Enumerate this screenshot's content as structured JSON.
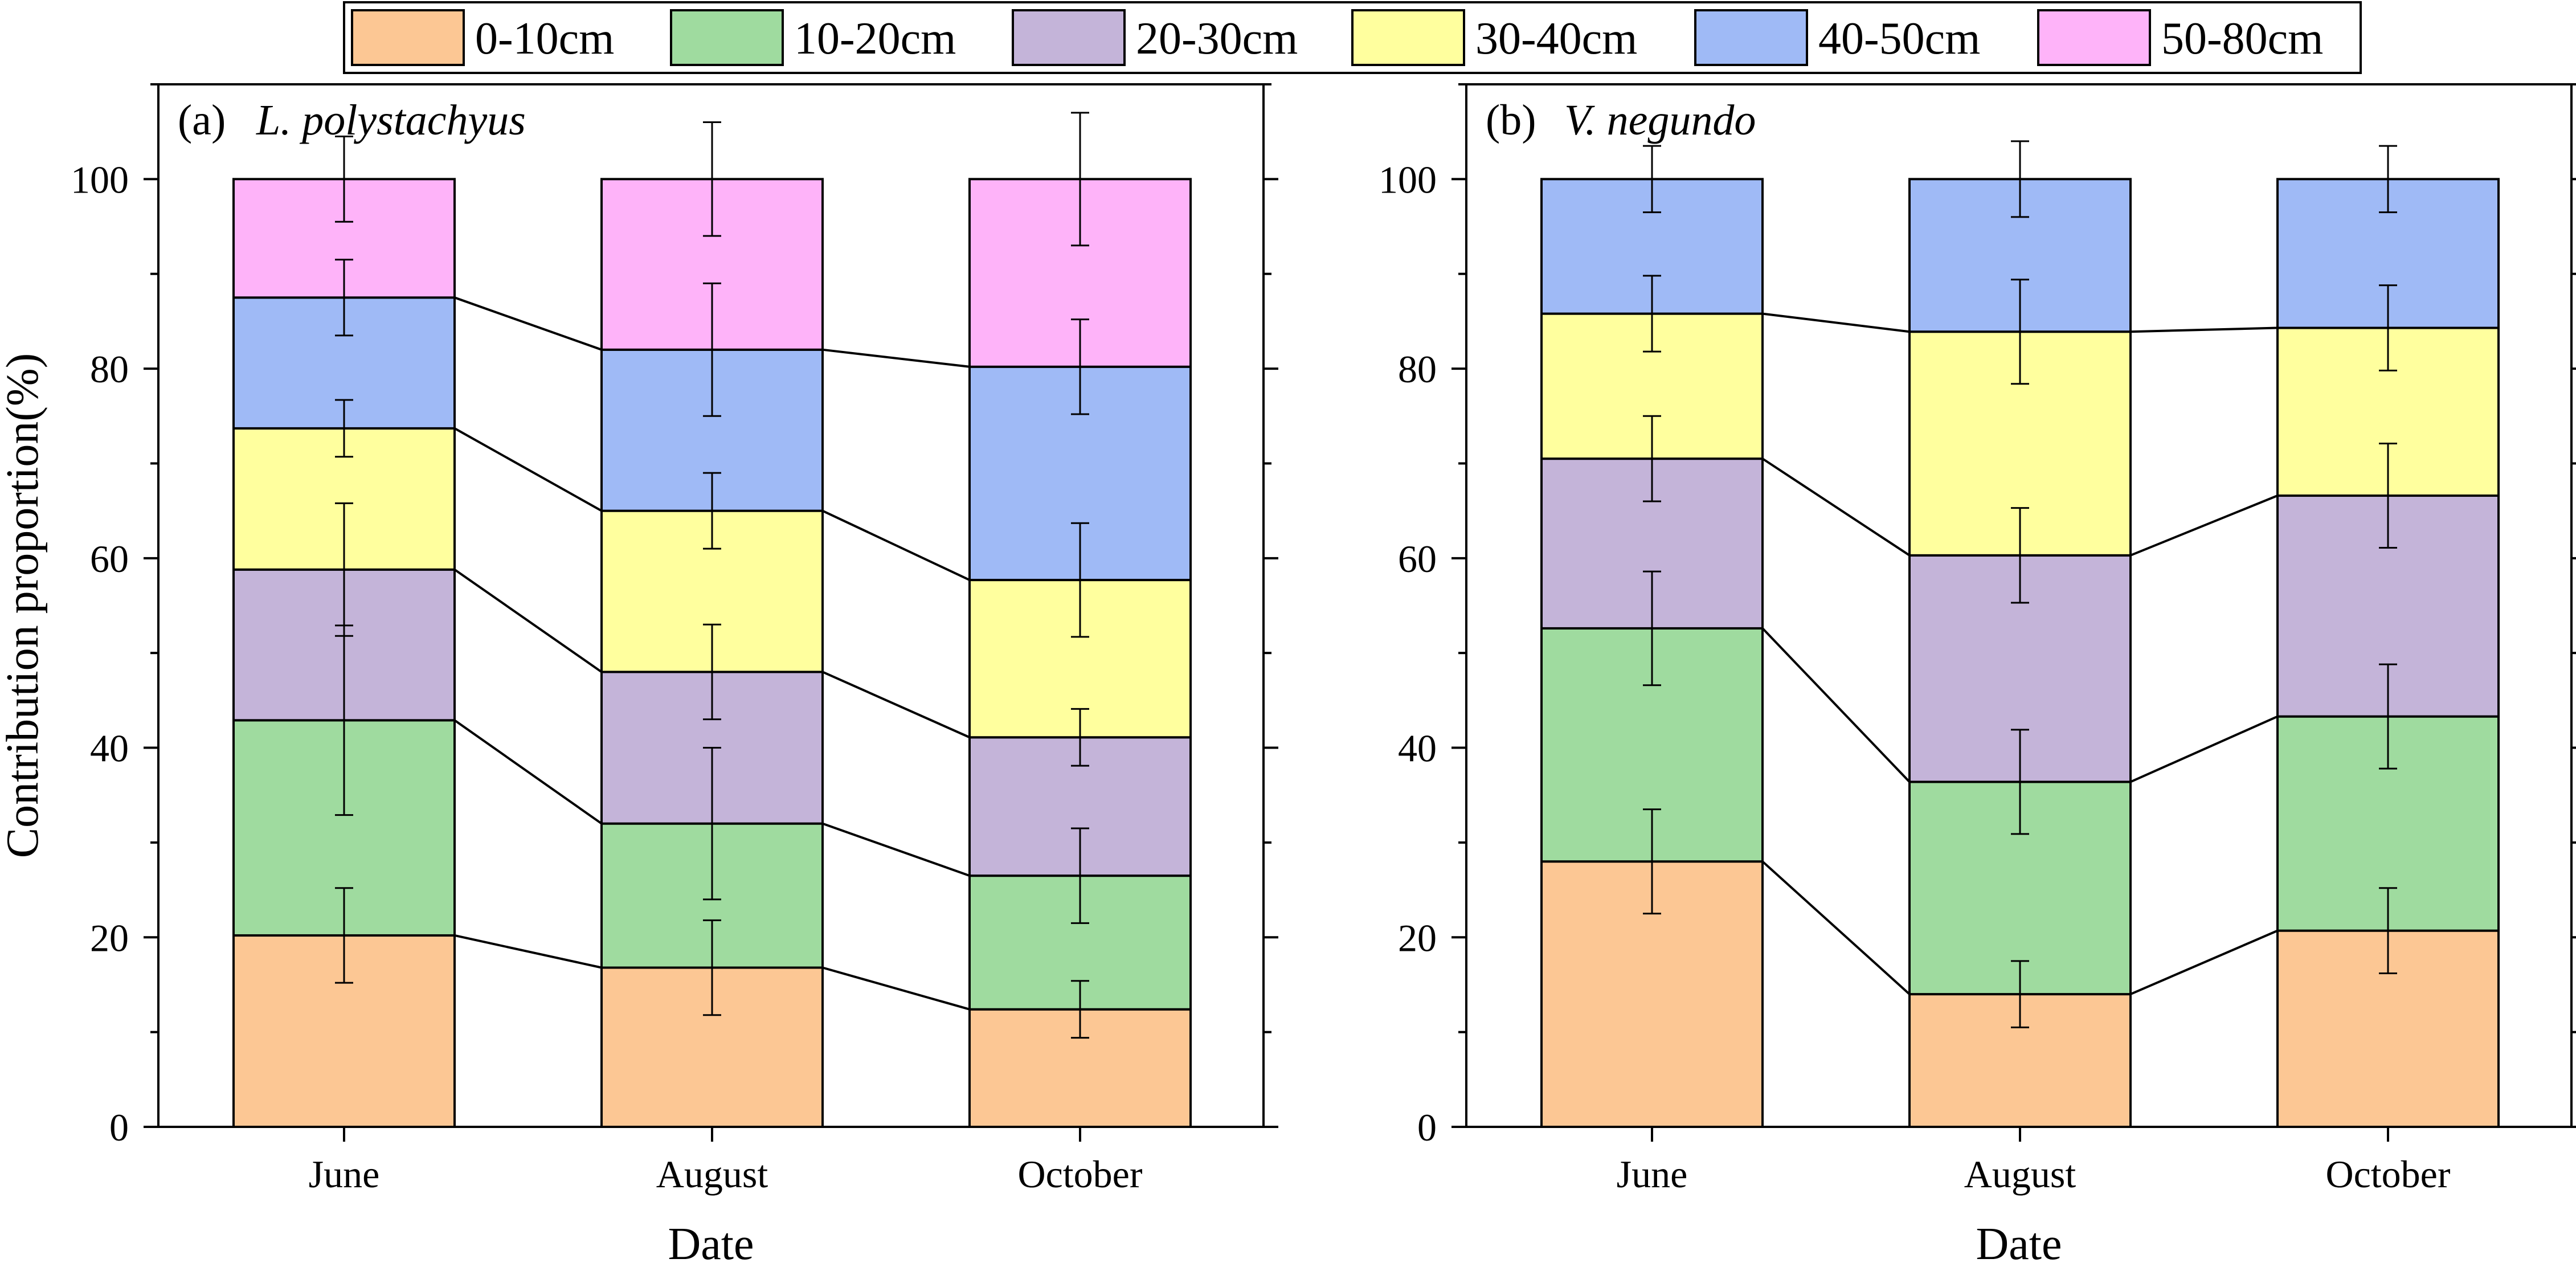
{
  "colors": {
    "0-10cm": "#fcc794",
    "10-20cm": "#9fdb9f",
    "20-30cm": "#c4b4d9",
    "30-40cm": "#ffff9e",
    "40-50cm": "#9fbaf6",
    "50-80cm": "#feb3f9"
  },
  "legend": {
    "entries": [
      "0-10cm",
      "10-20cm",
      "20-30cm",
      "30-40cm",
      "40-50cm",
      "50-80cm"
    ],
    "placement": "top-center"
  },
  "chart_data": [
    {
      "type": "bar",
      "stacked": true,
      "panel_label": "(a)",
      "title": "L. polystachyus",
      "xlabel": "Date",
      "ylabel": "Contribution proportion(%)",
      "ylim": [
        0,
        110
      ],
      "yticks": [
        0,
        20,
        40,
        60,
        80,
        100
      ],
      "categories": [
        "June",
        "August",
        "October"
      ],
      "series": [
        {
          "name": "0-10cm",
          "values": [
            20.2,
            16.8,
            12.4
          ],
          "errors": [
            5.0,
            5.0,
            3.0
          ]
        },
        {
          "name": "10-20cm",
          "values": [
            22.7,
            15.2,
            14.1
          ],
          "errors": [
            10.0,
            8.0,
            5.0
          ]
        },
        {
          "name": "20-30cm",
          "values": [
            15.9,
            16.0,
            14.6
          ],
          "errors": [
            7.0,
            5.0,
            3.0
          ]
        },
        {
          "name": "30-40cm",
          "values": [
            14.9,
            17.0,
            16.6
          ],
          "errors": [
            3.0,
            4.0,
            6.0
          ]
        },
        {
          "name": "40-50cm",
          "values": [
            13.8,
            17.0,
            22.5
          ],
          "errors": [
            4.0,
            7.0,
            5.0
          ]
        },
        {
          "name": "50-80cm",
          "values": [
            12.5,
            18.0,
            19.8
          ],
          "errors": [
            4.5,
            6.0,
            7.0
          ]
        }
      ]
    },
    {
      "type": "bar",
      "stacked": true,
      "panel_label": "(b)",
      "title": "V. negundo",
      "xlabel": "Date",
      "ylabel": "",
      "ylim": [
        0,
        110
      ],
      "yticks": [
        0,
        20,
        40,
        60,
        80,
        100
      ],
      "categories": [
        "June",
        "August",
        "October"
      ],
      "series": [
        {
          "name": "0-10cm",
          "values": [
            28.0,
            14.0,
            20.7
          ],
          "errors": [
            5.5,
            3.5,
            4.5
          ]
        },
        {
          "name": "10-20cm",
          "values": [
            24.6,
            22.4,
            22.6
          ],
          "errors": [
            6.0,
            5.5,
            5.5
          ]
        },
        {
          "name": "20-30cm",
          "values": [
            17.9,
            23.9,
            23.3
          ],
          "errors": [
            4.5,
            5.0,
            5.5
          ]
        },
        {
          "name": "30-40cm",
          "values": [
            15.3,
            23.6,
            17.7
          ],
          "errors": [
            4.0,
            5.5,
            4.5
          ]
        },
        {
          "name": "40-50cm",
          "values": [
            14.2,
            16.1,
            15.7
          ],
          "errors": [
            3.5,
            4.0,
            3.5
          ]
        }
      ]
    }
  ]
}
